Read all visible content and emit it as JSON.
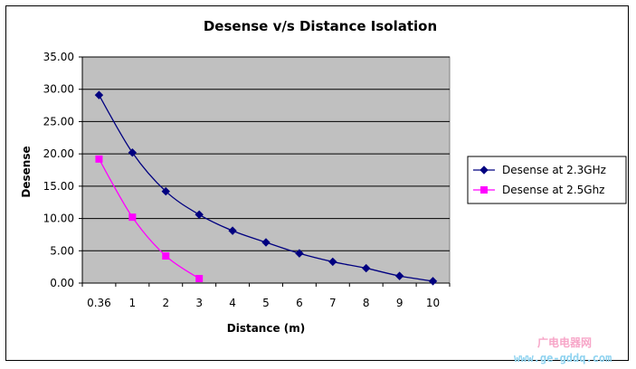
{
  "watermark": {
    "line1": "广电电器网",
    "line2": "www.ge-gddq.com"
  },
  "chart_data": {
    "type": "line",
    "title": "Desense v/s Distance Isolation",
    "xlabel": "Distance (m)",
    "ylabel": "Desense",
    "categories": [
      "0.36",
      "1",
      "2",
      "3",
      "4",
      "5",
      "6",
      "7",
      "8",
      "9",
      "10"
    ],
    "yticks": [
      "0.00",
      "5.00",
      "10.00",
      "15.00",
      "20.00",
      "25.00",
      "30.00",
      "35.00"
    ],
    "ylim": [
      0,
      35
    ],
    "grid": true,
    "legend_position": "right",
    "plot_background": "#c0c0c0",
    "series": [
      {
        "name": "Desense at 2.3GHz",
        "color": "#000080",
        "marker": "diamond",
        "values": [
          29.1,
          20.2,
          14.2,
          10.6,
          8.1,
          6.3,
          4.6,
          3.3,
          2.3,
          1.1,
          0.3
        ]
      },
      {
        "name": "Desense at 2.5Ghz",
        "color": "#ff00ff",
        "marker": "square",
        "values": [
          19.2,
          10.2,
          4.2,
          0.7,
          null,
          null,
          null,
          null,
          null,
          null,
          null
        ]
      }
    ]
  }
}
